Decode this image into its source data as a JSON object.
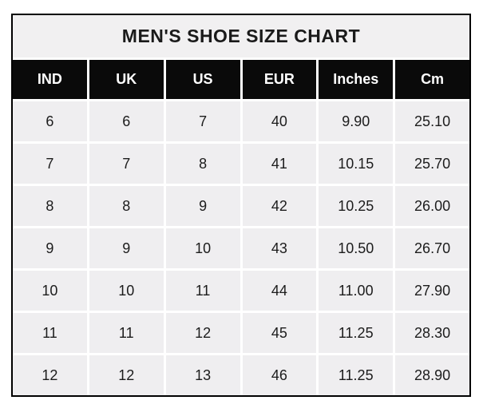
{
  "chart_data": {
    "type": "table",
    "title": "MEN'S SHOE SIZE CHART",
    "columns": [
      "IND",
      "UK",
      "US",
      "EUR",
      "Inches",
      "Cm"
    ],
    "rows": [
      [
        "6",
        "6",
        "7",
        "40",
        "9.90",
        "25.10"
      ],
      [
        "7",
        "7",
        "8",
        "41",
        "10.15",
        "25.70"
      ],
      [
        "8",
        "8",
        "9",
        "42",
        "10.25",
        "26.00"
      ],
      [
        "9",
        "9",
        "10",
        "43",
        "10.50",
        "26.70"
      ],
      [
        "10",
        "10",
        "11",
        "44",
        "11.00",
        "27.90"
      ],
      [
        "11",
        "11",
        "12",
        "45",
        "11.25",
        "28.30"
      ],
      [
        "12",
        "12",
        "13",
        "46",
        "11.25",
        "28.90"
      ]
    ],
    "layout": {
      "legend": "none",
      "grid": "white gridlines between cells"
    },
    "colors": {
      "page_background": "#ffffff",
      "title_background": "#f1f0f1",
      "header_background": "#0a0a0a",
      "header_text": "#ffffff",
      "cell_background": "#efeef0",
      "cell_text": "#1c1c1c",
      "gridline": "#ffffff",
      "outer_border": "#000000"
    }
  }
}
